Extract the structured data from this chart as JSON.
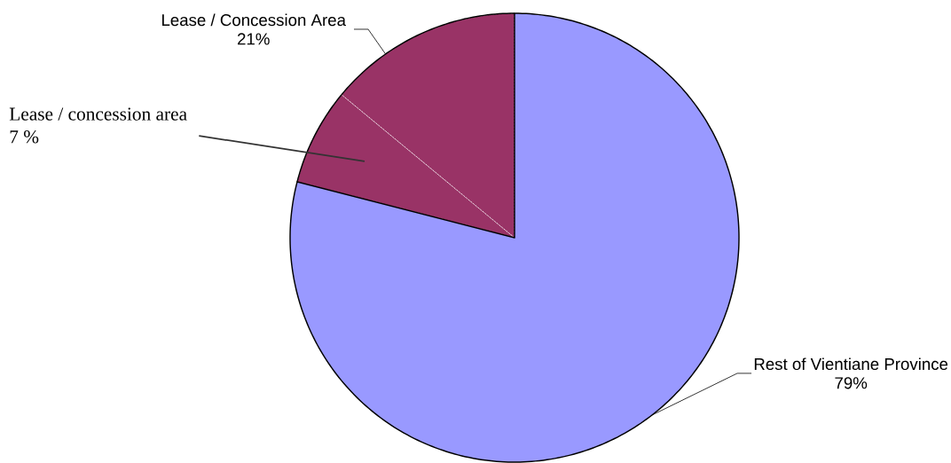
{
  "chart_data": {
    "type": "pie",
    "categories": [
      "Rest of Vientiane Province",
      "Lease / concession area",
      null
    ],
    "values": [
      79,
      7,
      14
    ],
    "colors": [
      "#9999ff",
      "#993366",
      "#993366"
    ],
    "value_labels": [
      "79%",
      "7 %",
      null
    ],
    "annotations": [
      "Lease / Concession Area 21%"
    ]
  }
}
